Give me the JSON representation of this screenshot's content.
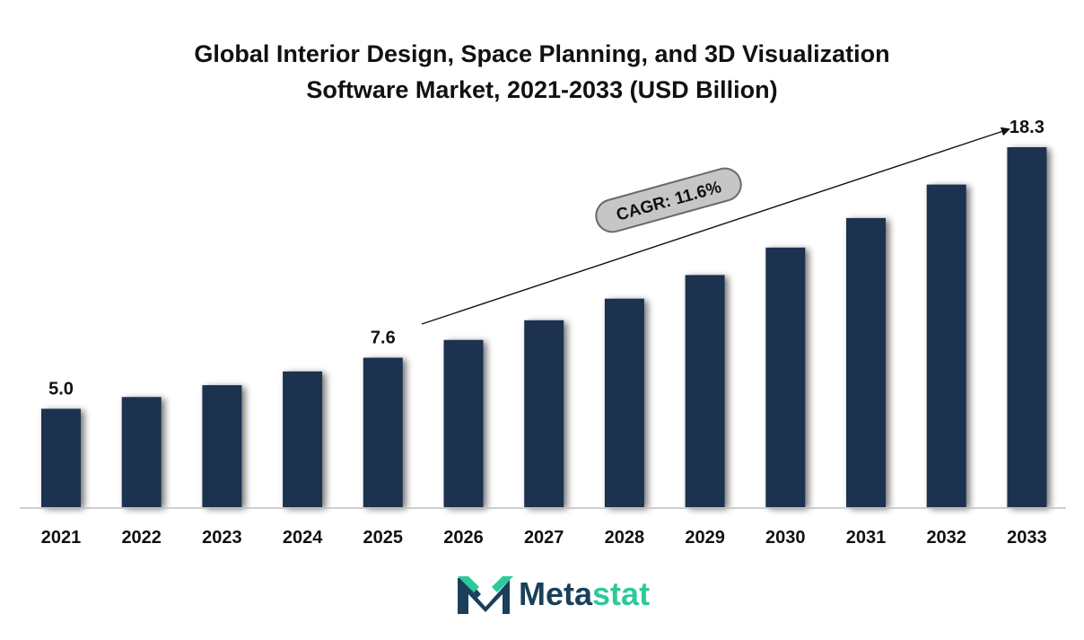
{
  "chart_data": {
    "type": "bar",
    "title": "Global Interior Design, Space Planning, and 3D Visualization Software Market, 2021-2033 (USD Billion)",
    "title_lines": [
      "Global Interior Design, Space Planning, and 3D Visualization",
      "Software Market, 2021-2033 (USD Billion)"
    ],
    "categories": [
      "2021",
      "2022",
      "2023",
      "2024",
      "2025",
      "2026",
      "2027",
      "2028",
      "2029",
      "2030",
      "2031",
      "2032",
      "2033"
    ],
    "values": [
      5.0,
      5.6,
      6.2,
      6.9,
      7.6,
      8.5,
      9.5,
      10.6,
      11.8,
      13.2,
      14.7,
      16.4,
      18.3
    ],
    "data_labels": [
      {
        "category": "2021",
        "text": "5.0"
      },
      {
        "category": "2025",
        "text": "7.6"
      },
      {
        "category": "2033",
        "text": "18.3"
      }
    ],
    "annotation": "CAGR: 11.6%",
    "bar_color": "#1b3350",
    "ylim": [
      0,
      18.3
    ],
    "grid": false,
    "xlabel": "",
    "ylabel": ""
  },
  "brand": {
    "name_part1": "Meta",
    "name_part2": "stat",
    "colors": {
      "dark": "#1b3f5a",
      "accent": "#2ec99a"
    }
  }
}
